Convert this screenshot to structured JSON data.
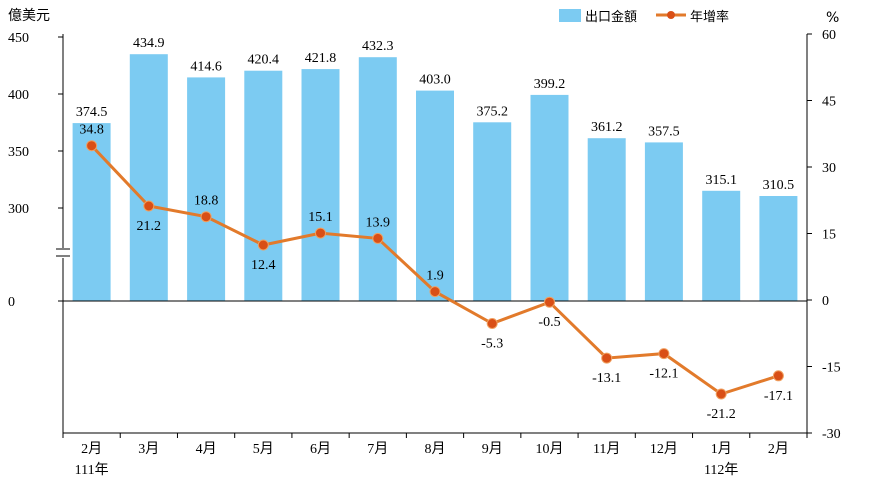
{
  "chart_data": {
    "type": "bar+line",
    "categories": [
      "2月",
      "3月",
      "4月",
      "5月",
      "6月",
      "7月",
      "8月",
      "9月",
      "10月",
      "11月",
      "12月",
      "1月",
      "2月"
    ],
    "year_labels": [
      "111年",
      "",
      "",
      "",
      "",
      "",
      "",
      "",
      "",
      "",
      "",
      "112年",
      ""
    ],
    "series": [
      {
        "name": "出口金額",
        "type": "bar",
        "axis": "left",
        "color": "#7ccbf2",
        "values": [
          374.5,
          434.9,
          414.6,
          420.4,
          421.8,
          432.3,
          403.0,
          375.2,
          399.2,
          361.2,
          357.5,
          315.1,
          310.5
        ],
        "labels": [
          "374.5",
          "434.9",
          "414.6",
          "420.4",
          "421.8",
          "432.3",
          "403.0",
          "375.2",
          "399.2",
          "361.2",
          "357.5",
          "315.1",
          "310.5"
        ]
      },
      {
        "name": "年增率",
        "type": "line",
        "axis": "right",
        "color": "#e27a2b",
        "marker_color": "#d94f16",
        "values": [
          34.8,
          21.2,
          18.8,
          12.4,
          15.1,
          13.9,
          1.9,
          -5.3,
          -0.5,
          -13.1,
          -12.1,
          -21.2,
          -17.1
        ],
        "labels": [
          "34.8",
          "21.2",
          "18.8",
          "12.4",
          "15.1",
          "13.9",
          "1.9",
          "-5.3",
          "-0.5",
          "-13.1",
          "-12.1",
          "-21.2",
          "-17.1"
        ]
      }
    ],
    "left_axis": {
      "unit": "億美元",
      "ticks": [
        "450",
        "400",
        "350",
        "300",
        "0"
      ],
      "tick_values": [
        450,
        400,
        350,
        300,
        0
      ],
      "axis_break": true
    },
    "right_axis": {
      "unit": "%",
      "ticks": [
        "60",
        "45",
        "30",
        "15",
        "0",
        "-15",
        "-30"
      ],
      "tick_values": [
        60,
        45,
        30,
        15,
        0,
        -15,
        -30
      ],
      "ylim": [
        -30,
        60
      ]
    },
    "legend": {
      "position": "top-right",
      "entries": [
        "出口金額",
        "年增率"
      ]
    },
    "grid": false
  }
}
